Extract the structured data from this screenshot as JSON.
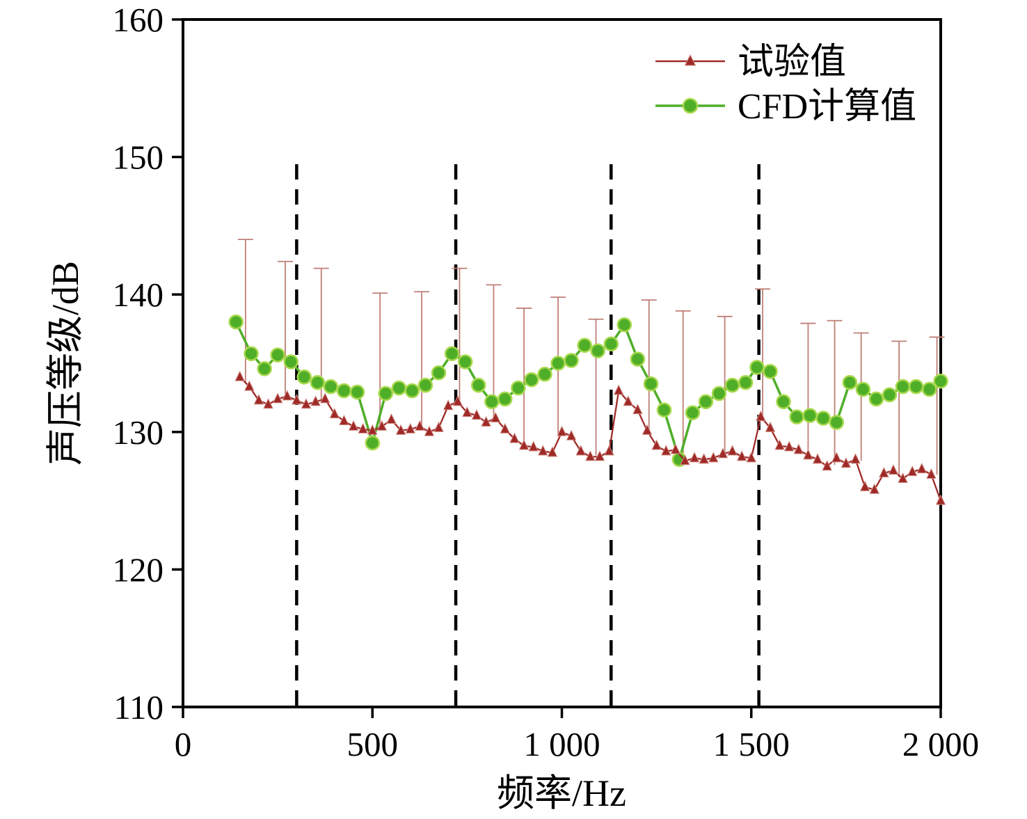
{
  "chart_data": {
    "type": "line",
    "title": "",
    "xlabel": "频率/Hz",
    "ylabel": "声压等级/dB",
    "xlim": [
      0,
      2000
    ],
    "ylim": [
      110,
      160
    ],
    "grid": false,
    "legend_position": "top-right",
    "x_ticks": [
      {
        "v": 0,
        "label": "0"
      },
      {
        "v": 500,
        "label": "500"
      },
      {
        "v": 1000,
        "label": "1 000"
      },
      {
        "v": 1500,
        "label": "1 500"
      },
      {
        "v": 2000,
        "label": "2 000"
      }
    ],
    "y_ticks": [
      {
        "v": 110,
        "label": "110"
      },
      {
        "v": 120,
        "label": "120"
      },
      {
        "v": 130,
        "label": "130"
      },
      {
        "v": 140,
        "label": "140"
      },
      {
        "v": 150,
        "label": "150"
      },
      {
        "v": 160,
        "label": "160"
      }
    ],
    "dashed_vlines": [
      300,
      720,
      1130,
      1520
    ],
    "dashed_vline_top": 149.5,
    "series": [
      {
        "name": "试验值",
        "marker": "triangle",
        "color": "#9f2a28",
        "marker_edge": "#cf8d84",
        "errorbar_color": "#bf7f78",
        "points": [
          [
            150,
            134.0
          ],
          [
            175,
            133.3
          ],
          [
            200,
            132.3
          ],
          [
            225,
            132.0
          ],
          [
            250,
            132.4
          ],
          [
            275,
            132.6
          ],
          [
            300,
            132.3
          ],
          [
            325,
            132.0
          ],
          [
            350,
            132.2
          ],
          [
            375,
            132.4
          ],
          [
            400,
            131.3
          ],
          [
            425,
            130.8
          ],
          [
            450,
            130.4
          ],
          [
            475,
            130.2
          ],
          [
            500,
            130.1
          ],
          [
            525,
            130.4
          ],
          [
            550,
            130.9
          ],
          [
            575,
            130.1
          ],
          [
            600,
            130.2
          ],
          [
            625,
            130.4
          ],
          [
            650,
            130.0
          ],
          [
            675,
            130.3
          ],
          [
            700,
            131.9
          ],
          [
            725,
            132.2
          ],
          [
            750,
            131.4
          ],
          [
            775,
            131.2
          ],
          [
            800,
            130.7
          ],
          [
            825,
            131.0
          ],
          [
            850,
            130.2
          ],
          [
            875,
            129.5
          ],
          [
            900,
            129.0
          ],
          [
            925,
            128.9
          ],
          [
            950,
            128.6
          ],
          [
            975,
            128.5
          ],
          [
            1000,
            130.0
          ],
          [
            1025,
            129.7
          ],
          [
            1050,
            128.6
          ],
          [
            1075,
            128.2
          ],
          [
            1100,
            128.2
          ],
          [
            1125,
            128.6
          ],
          [
            1150,
            133.0
          ],
          [
            1175,
            132.2
          ],
          [
            1200,
            131.6
          ],
          [
            1225,
            130.1
          ],
          [
            1250,
            129.0
          ],
          [
            1275,
            128.6
          ],
          [
            1300,
            128.7
          ],
          [
            1325,
            127.9
          ],
          [
            1350,
            128.1
          ],
          [
            1375,
            128.0
          ],
          [
            1400,
            128.1
          ],
          [
            1425,
            128.4
          ],
          [
            1450,
            128.6
          ],
          [
            1475,
            128.2
          ],
          [
            1500,
            128.1
          ],
          [
            1525,
            131.1
          ],
          [
            1550,
            130.3
          ],
          [
            1575,
            129.0
          ],
          [
            1600,
            128.9
          ],
          [
            1625,
            128.7
          ],
          [
            1650,
            128.3
          ],
          [
            1675,
            128.0
          ],
          [
            1700,
            127.5
          ],
          [
            1725,
            128.1
          ],
          [
            1750,
            127.7
          ],
          [
            1775,
            128.0
          ],
          [
            1800,
            126.0
          ],
          [
            1825,
            125.8
          ],
          [
            1850,
            127.0
          ],
          [
            1875,
            127.2
          ],
          [
            1900,
            126.6
          ],
          [
            1925,
            127.1
          ],
          [
            1950,
            127.3
          ],
          [
            1975,
            126.9
          ],
          [
            2000,
            125.0
          ]
        ],
        "errorbars": [
          [
            165,
            133.5,
            144.0
          ],
          [
            270,
            132.5,
            142.4
          ],
          [
            365,
            132.3,
            141.9
          ],
          [
            520,
            130.3,
            140.1
          ],
          [
            630,
            130.3,
            140.2
          ],
          [
            730,
            132.1,
            141.9
          ],
          [
            820,
            131.0,
            140.7
          ],
          [
            900,
            129.0,
            139.0
          ],
          [
            990,
            129.9,
            139.8
          ],
          [
            1090,
            128.3,
            138.2
          ],
          [
            1230,
            130.0,
            139.6
          ],
          [
            1320,
            128.2,
            138.8
          ],
          [
            1430,
            128.5,
            138.4
          ],
          [
            1530,
            130.9,
            140.4
          ],
          [
            1650,
            128.3,
            137.9
          ],
          [
            1720,
            127.6,
            138.1
          ],
          [
            1790,
            127.9,
            137.2
          ],
          [
            1890,
            126.7,
            136.6
          ],
          [
            1990,
            126.9,
            136.9
          ]
        ]
      },
      {
        "name": "CFD计算值",
        "marker": "circle",
        "color": "#4fae28",
        "marker_edge": "#a8d84c",
        "points": [
          [
            140,
            138.0
          ],
          [
            180,
            135.7
          ],
          [
            215,
            134.6
          ],
          [
            250,
            135.6
          ],
          [
            285,
            135.1
          ],
          [
            320,
            134.0
          ],
          [
            355,
            133.6
          ],
          [
            390,
            133.3
          ],
          [
            425,
            133.0
          ],
          [
            460,
            132.9
          ],
          [
            500,
            129.2
          ],
          [
            535,
            132.8
          ],
          [
            570,
            133.2
          ],
          [
            605,
            133.0
          ],
          [
            640,
            133.4
          ],
          [
            675,
            134.3
          ],
          [
            710,
            135.7
          ],
          [
            745,
            135.1
          ],
          [
            780,
            133.4
          ],
          [
            815,
            132.2
          ],
          [
            850,
            132.4
          ],
          [
            885,
            133.2
          ],
          [
            920,
            133.8
          ],
          [
            955,
            134.2
          ],
          [
            990,
            135.0
          ],
          [
            1025,
            135.2
          ],
          [
            1060,
            136.3
          ],
          [
            1095,
            135.9
          ],
          [
            1130,
            136.4
          ],
          [
            1165,
            137.8
          ],
          [
            1200,
            135.3
          ],
          [
            1235,
            133.5
          ],
          [
            1270,
            131.6
          ],
          [
            1310,
            128.0
          ],
          [
            1345,
            131.4
          ],
          [
            1380,
            132.2
          ],
          [
            1415,
            132.8
          ],
          [
            1450,
            133.4
          ],
          [
            1485,
            133.6
          ],
          [
            1515,
            134.7
          ],
          [
            1550,
            134.4
          ],
          [
            1585,
            132.2
          ],
          [
            1620,
            131.1
          ],
          [
            1655,
            131.2
          ],
          [
            1690,
            131.0
          ],
          [
            1725,
            130.7
          ],
          [
            1760,
            133.6
          ],
          [
            1795,
            133.1
          ],
          [
            1830,
            132.4
          ],
          [
            1865,
            132.7
          ],
          [
            1900,
            133.3
          ],
          [
            1935,
            133.3
          ],
          [
            1970,
            133.1
          ],
          [
            2000,
            133.7
          ]
        ]
      }
    ]
  },
  "colors": {
    "axis": "#000000",
    "background": "#ffffff",
    "dashed_line": "#000000"
  }
}
